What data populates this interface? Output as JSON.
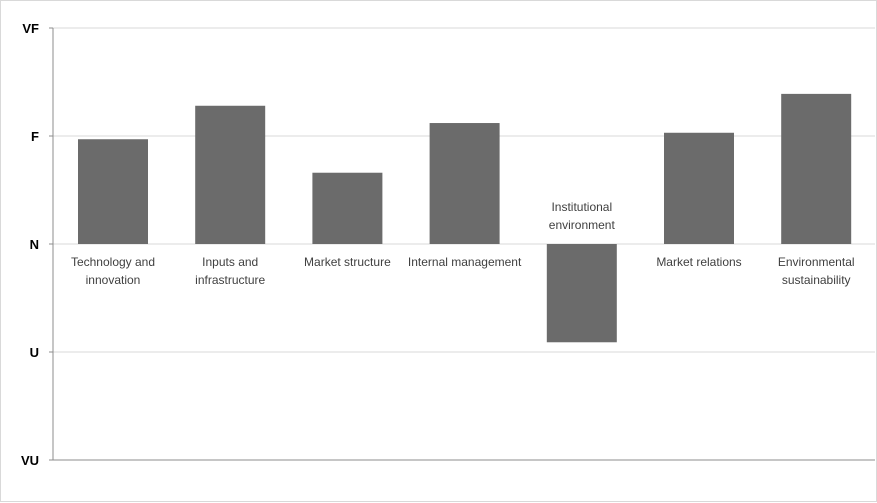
{
  "chart_data": {
    "type": "bar",
    "categories": [
      [
        "Technology and",
        "innovation"
      ],
      [
        "Inputs and",
        "infrastructure"
      ],
      [
        "Market structure"
      ],
      [
        "Internal management"
      ],
      [
        "Institutional",
        "environment"
      ],
      [
        "Market relations"
      ],
      [
        "Environmental",
        "sustainability"
      ]
    ],
    "values": [
      0.97,
      1.28,
      0.66,
      1.12,
      -0.91,
      1.03,
      1.39
    ],
    "y_scale": {
      "ticks": [
        {
          "label": "VU",
          "value": -2
        },
        {
          "label": "U",
          "value": -1
        },
        {
          "label": "N",
          "value": 0
        },
        {
          "label": "F",
          "value": 1
        },
        {
          "label": "VF",
          "value": 2
        }
      ]
    },
    "ylim": [
      -2,
      2
    ],
    "grid": true,
    "legend": "none",
    "colors": {
      "bar": "#6b6b6b",
      "grid": "#d9d9d9",
      "axis": "#8c8c8c"
    }
  }
}
